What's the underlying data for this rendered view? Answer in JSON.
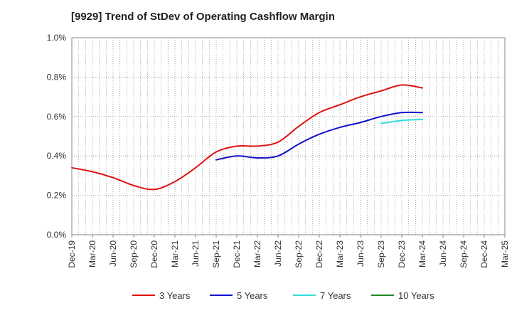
{
  "chart_data": {
    "type": "line",
    "title": "[9929]  Trend of StDev of Operating Cashflow Margin",
    "xlabel": "",
    "ylabel": "",
    "ylim": [
      0,
      1.0
    ],
    "y_ticks": [
      "0.0%",
      "0.2%",
      "0.4%",
      "0.6%",
      "0.8%",
      "1.0%"
    ],
    "y_tick_values": [
      0,
      0.2,
      0.4,
      0.6,
      0.8,
      1.0
    ],
    "categories": [
      "Dec-19",
      "Mar-20",
      "Jun-20",
      "Sep-20",
      "Dec-20",
      "Mar-21",
      "Jun-21",
      "Sep-21",
      "Dec-21",
      "Mar-22",
      "Jun-22",
      "Sep-22",
      "Dec-22",
      "Mar-23",
      "Jun-23",
      "Sep-23",
      "Dec-23",
      "Mar-24",
      "Jun-24",
      "Sep-24",
      "Dec-24",
      "Mar-25"
    ],
    "grid": true,
    "legend_position": "bottom",
    "series": [
      {
        "name": "3 Years",
        "color": "#dd1111",
        "values": [
          0.34,
          0.32,
          0.29,
          0.25,
          0.23,
          0.27,
          0.34,
          0.42,
          0.45,
          0.45,
          0.47,
          0.55,
          0.62,
          0.66,
          0.7,
          0.73,
          0.76,
          0.745,
          null,
          null,
          null,
          null
        ]
      },
      {
        "name": "5 Years",
        "color": "#1111cc",
        "values": [
          null,
          null,
          null,
          null,
          null,
          null,
          null,
          0.38,
          0.4,
          0.39,
          0.4,
          0.46,
          0.51,
          0.545,
          0.57,
          0.6,
          0.62,
          0.62,
          null,
          null,
          null,
          null
        ]
      },
      {
        "name": "7 Years",
        "color": "#33dddd",
        "values": [
          null,
          null,
          null,
          null,
          null,
          null,
          null,
          null,
          null,
          null,
          null,
          null,
          null,
          null,
          null,
          0.565,
          0.58,
          0.585,
          null,
          null,
          null,
          null
        ]
      },
      {
        "name": "10 Years",
        "color": "#228822",
        "values": [
          null,
          null,
          null,
          null,
          null,
          null,
          null,
          null,
          null,
          null,
          null,
          null,
          null,
          null,
          null,
          null,
          null,
          null,
          null,
          null,
          null,
          null
        ]
      }
    ]
  }
}
